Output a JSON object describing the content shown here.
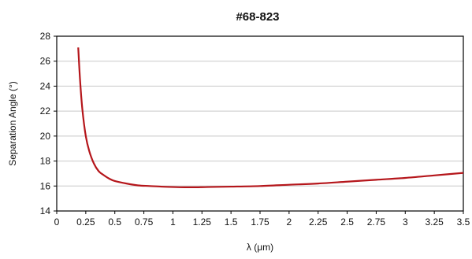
{
  "chart_data": {
    "type": "line",
    "title": "#68-823",
    "xlabel": "λ (μm)",
    "ylabel": "Separation Angle (°)",
    "xlim": [
      0,
      3.5
    ],
    "ylim": [
      14,
      28
    ],
    "x_ticks": [
      0,
      0.25,
      0.5,
      0.75,
      1,
      1.25,
      1.5,
      1.75,
      2,
      2.25,
      2.5,
      2.75,
      3,
      3.25,
      3.5
    ],
    "x_tick_labels": [
      "0",
      "0.25",
      "0.5",
      "0.75",
      "1",
      "1.25",
      "1.5",
      "1.75",
      "2",
      "2.25",
      "2.5",
      "2.75",
      "3",
      "3.25",
      "3.5"
    ],
    "y_ticks": [
      14,
      16,
      18,
      20,
      22,
      24,
      26,
      28
    ],
    "y_tick_labels": [
      "14",
      "16",
      "18",
      "20",
      "22",
      "24",
      "26",
      "28"
    ],
    "grid": "horizontal",
    "line_color": "#b5161b",
    "series": [
      {
        "x": [
          0.185,
          0.2,
          0.22,
          0.25,
          0.28,
          0.32,
          0.36,
          0.4,
          0.45,
          0.5,
          0.6,
          0.7,
          0.8,
          0.9,
          1.0,
          1.1,
          1.2,
          1.3,
          1.5,
          1.75,
          2.0,
          2.25,
          2.5,
          2.75,
          3.0,
          3.25,
          3.5
        ],
        "y": [
          27.1,
          24.6,
          22.2,
          20.0,
          18.8,
          17.8,
          17.2,
          16.9,
          16.6,
          16.4,
          16.2,
          16.05,
          16.0,
          15.95,
          15.92,
          15.9,
          15.9,
          15.92,
          15.95,
          16.0,
          16.1,
          16.2,
          16.35,
          16.5,
          16.65,
          16.85,
          17.05
        ]
      }
    ]
  }
}
